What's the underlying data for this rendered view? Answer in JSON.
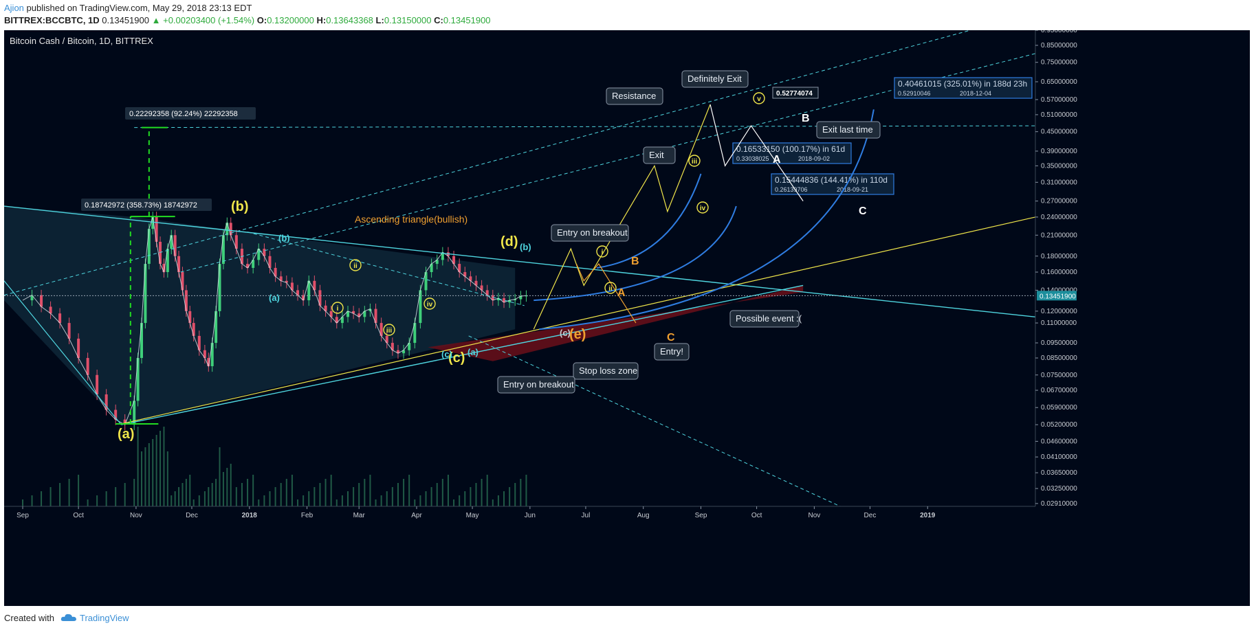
{
  "header": {
    "author": "Ajion",
    "published_text": "published on TradingView.com, May 29, 2018 23:13 EDT",
    "symbol": "BITTREX:BCCBTC, 1D",
    "price": "0.13451900",
    "change_arrow": "▲",
    "change": "+0.00203400 (+1.54%)",
    "o_label": "O:",
    "o_value": "0.13200000",
    "h_label": "H:",
    "h_value": "0.13643368",
    "l_label": "L:",
    "l_value": "0.13150000",
    "c_label": "C:",
    "c_value": "0.13451900"
  },
  "footer": {
    "created_with": "Created with",
    "brand": "TradingView",
    "logo_icon": "tradingview-cloud-icon"
  },
  "colors": {
    "background": "#000818",
    "cyan": "#4fd6e0",
    "yellow": "#f0e64a",
    "orange": "#f0a030",
    "blue_arc": "#2f7de1",
    "green_measure": "#22dd22",
    "red_zone": "#6a0f1a",
    "white_wave": "#ffffff"
  },
  "chart_data": {
    "type": "line",
    "title": "Bitcoin Cash / Bitcoin, 1D, BITTREX",
    "y_scale": "log",
    "ylim": [
      0.0285,
      0.95
    ],
    "y_ticks": [
      "0.95000000",
      "0.85000000",
      "0.75000000",
      "0.65000000",
      "0.57000000",
      "0.51000000",
      "0.45000000",
      "0.39000000",
      "0.35000000",
      "0.31000000",
      "0.27000000",
      "0.24000000",
      "0.21000000",
      "0.18000000",
      "0.16000000",
      "0.14000000",
      "0.12000000",
      "0.11000000",
      "0.09500000",
      "0.08500000",
      "0.07500000",
      "0.06700000",
      "0.05900000",
      "0.05200000",
      "0.04600000",
      "0.04100000",
      "0.03650000",
      "0.03250000",
      "0.02910000"
    ],
    "y_tick_values": [
      0.95,
      0.85,
      0.75,
      0.65,
      0.57,
      0.51,
      0.45,
      0.39,
      0.35,
      0.31,
      0.27,
      0.24,
      0.21,
      0.18,
      0.16,
      0.14,
      0.12,
      0.11,
      0.095,
      0.085,
      0.075,
      0.067,
      0.059,
      0.052,
      0.046,
      0.041,
      0.0365,
      0.0325,
      0.0291
    ],
    "last_price_label": "0.13451900",
    "last_price": 0.134519,
    "x_months": [
      "Sep",
      "Oct",
      "Nov",
      "Dec",
      "2018",
      "Feb",
      "Mar",
      "Apr",
      "May",
      "Jun",
      "Jul",
      "Aug",
      "Sep",
      "Oct",
      "Nov",
      "Dec",
      "2019"
    ],
    "x_month_days": [
      0,
      30,
      61,
      91,
      122,
      153,
      181,
      212,
      242,
      273,
      303,
      334,
      365,
      395,
      426,
      456,
      487
    ],
    "x_range_days": [
      -10,
      545
    ],
    "price_series": {
      "name": "BCCBTC",
      "days": [
        0,
        5,
        10,
        15,
        20,
        25,
        30,
        35,
        40,
        45,
        50,
        55,
        60,
        62,
        64,
        66,
        68,
        70,
        72,
        74,
        76,
        78,
        80,
        82,
        84,
        86,
        88,
        90,
        92,
        95,
        98,
        100,
        102,
        104,
        106,
        108,
        110,
        112,
        115,
        118,
        121,
        124,
        127,
        130,
        133,
        136,
        139,
        142,
        145,
        148,
        151,
        154,
        157,
        160,
        163,
        166,
        169,
        172,
        175,
        178,
        181,
        184,
        187,
        190,
        193,
        196,
        199,
        202,
        205,
        208,
        211,
        214,
        217,
        220,
        223,
        226,
        229,
        232,
        235,
        238,
        241,
        244,
        247,
        250,
        253,
        256,
        259,
        262,
        265,
        268,
        271
      ],
      "values": [
        0.13,
        0.135,
        0.124,
        0.118,
        0.11,
        0.098,
        0.085,
        0.075,
        0.065,
        0.058,
        0.054,
        0.052,
        0.062,
        0.085,
        0.11,
        0.17,
        0.22,
        0.24,
        0.2,
        0.17,
        0.16,
        0.19,
        0.21,
        0.18,
        0.16,
        0.14,
        0.12,
        0.11,
        0.1,
        0.09,
        0.085,
        0.08,
        0.095,
        0.12,
        0.17,
        0.21,
        0.23,
        0.21,
        0.19,
        0.17,
        0.165,
        0.175,
        0.19,
        0.18,
        0.165,
        0.155,
        0.15,
        0.148,
        0.14,
        0.135,
        0.13,
        0.15,
        0.14,
        0.125,
        0.12,
        0.115,
        0.11,
        0.115,
        0.12,
        0.118,
        0.115,
        0.12,
        0.122,
        0.11,
        0.1,
        0.095,
        0.09,
        0.088,
        0.09,
        0.095,
        0.11,
        0.14,
        0.16,
        0.17,
        0.175,
        0.185,
        0.18,
        0.17,
        0.16,
        0.155,
        0.15,
        0.145,
        0.14,
        0.135,
        0.13,
        0.132,
        0.128,
        0.13,
        0.131,
        0.134,
        0.1345
      ]
    },
    "measurements": [
      {
        "label": "0.22292358 (92.24%) 22292358",
        "from": 0.241,
        "to": 0.464
      },
      {
        "label": "0.18742972 (358.73%) 18742972",
        "from": 0.0523,
        "to": 0.241
      },
      {
        "label": "0.16533150 (100.17%) in 61d",
        "sub": "0.33038025",
        "date": "2018-09-02",
        "target": 0.3304
      },
      {
        "label": "0.15444836 (144.41%) in 110d",
        "sub": "0.26139706",
        "date": "2018-09-21",
        "target": 0.2614
      },
      {
        "label": "0.40461015 (325.01%) in 188d 23h",
        "sub": "0.52910046",
        "date": "2018-12-04",
        "target": 0.5291
      }
    ],
    "price_label": "0.52774074",
    "annotations": {
      "pattern": "Ascending triangle(bullish)",
      "notes": [
        "Resistance",
        "Definitely Exit",
        "Exit",
        "Entry on breakout",
        "Possible event :(",
        "Entry!",
        "Stop loss zone",
        "Entry on breakout",
        "Exit last time"
      ]
    },
    "wave_labels": {
      "yellow_big": [
        "(a)",
        "(b)",
        "(c)",
        "(d)"
      ],
      "cyan_small": [
        "(b)",
        "(a)",
        "(b)",
        "(c)",
        "(a)",
        "(c)"
      ],
      "yellow_roman": [
        "i",
        "ii",
        "iii",
        "iv",
        "i",
        "ii",
        "iii",
        "iv",
        "v"
      ],
      "orange": [
        "(e)",
        "A",
        "B",
        "C"
      ],
      "white": [
        "A",
        "B",
        "C"
      ]
    }
  }
}
